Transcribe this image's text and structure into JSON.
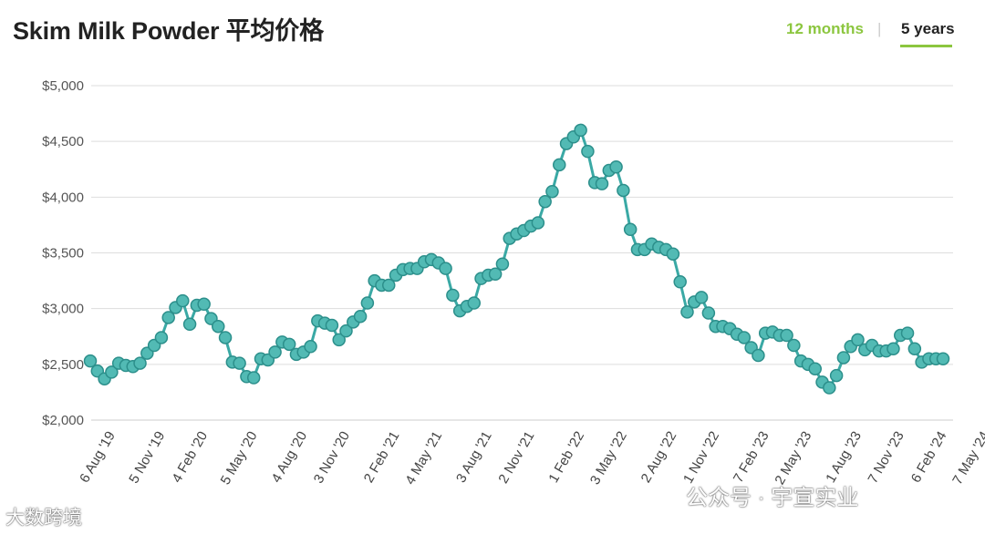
{
  "header": {
    "title": "Skim Milk Powder 平均价格",
    "range_options": [
      "12 months",
      "5 years"
    ],
    "separator": "|",
    "selected": "5 years"
  },
  "colors": {
    "line": "#3aa9a5",
    "marker_fill": "#52bab4",
    "marker_stroke": "#2c8f8b",
    "accent": "#8cc63f",
    "grid": "#dddddd"
  },
  "watermarks": {
    "left": "大数跨境",
    "right": "公众号 · 宇宣实业"
  },
  "chart_data": {
    "type": "line",
    "title": "Skim Milk Powder 平均价格",
    "xlabel": "",
    "ylabel": "",
    "ylim": [
      2000,
      5000
    ],
    "y_ticks": [
      {
        "value": 5000,
        "label": "$5,000"
      },
      {
        "value": 4500,
        "label": "$4,500"
      },
      {
        "value": 4000,
        "label": "$4,000"
      },
      {
        "value": 3500,
        "label": "$3,500"
      },
      {
        "value": 3000,
        "label": "$3,000"
      },
      {
        "value": 2500,
        "label": "$2,500"
      },
      {
        "value": 2000,
        "label": "$2,000"
      }
    ],
    "x_ticks": [
      {
        "index": 3,
        "label": "6 Aug '19"
      },
      {
        "index": 10,
        "label": "5 Nov '19"
      },
      {
        "index": 16,
        "label": "4 Feb '20"
      },
      {
        "index": 23,
        "label": "5 May '20"
      },
      {
        "index": 30,
        "label": "4 Aug '20"
      },
      {
        "index": 36,
        "label": "3 Nov '20"
      },
      {
        "index": 43,
        "label": "2 Feb '21"
      },
      {
        "index": 49,
        "label": "4 May '21"
      },
      {
        "index": 56,
        "label": "3 Aug '21"
      },
      {
        "index": 62,
        "label": "2 Nov '21"
      },
      {
        "index": 69,
        "label": "1 Feb '22"
      },
      {
        "index": 75,
        "label": "3 May '22"
      },
      {
        "index": 82,
        "label": "2 Aug '22"
      },
      {
        "index": 88,
        "label": "1 Nov '22"
      },
      {
        "index": 95,
        "label": "7 Feb '23"
      },
      {
        "index": 101,
        "label": "2 May '23"
      },
      {
        "index": 108,
        "label": "1 Aug '23"
      },
      {
        "index": 114,
        "label": "7 Nov '23"
      },
      {
        "index": 120,
        "label": "6 Feb '24"
      },
      {
        "index": 126,
        "label": "7 May '24"
      }
    ],
    "grid": true,
    "legend": "none",
    "series": [
      {
        "values": [
          2530,
          2440,
          2370,
          2430,
          2510,
          2490,
          2480,
          2510,
          2600,
          2670,
          2740,
          2920,
          3010,
          3070,
          2860,
          3030,
          3040,
          2910,
          2840,
          2740,
          2520,
          2510,
          2390,
          2380,
          2550,
          2540,
          2610,
          2700,
          2680,
          2590,
          2610,
          2660,
          2890,
          2870,
          2850,
          2720,
          2800,
          2880,
          2930,
          3050,
          3250,
          3210,
          3210,
          3300,
          3350,
          3360,
          3360,
          3420,
          3440,
          3410,
          3360,
          3120,
          2980,
          3020,
          3050,
          3270,
          3300,
          3310,
          3400,
          3630,
          3670,
          3700,
          3740,
          3770,
          3960,
          4050,
          4290,
          4480,
          4540,
          4600,
          4410,
          4130,
          4120,
          4240,
          4270,
          4060,
          3710,
          3530,
          3530,
          3580,
          3550,
          3530,
          3490,
          3240,
          2970,
          3060,
          3100,
          2960,
          2840,
          2840,
          2820,
          2770,
          2740,
          2650,
          2580,
          2780,
          2790,
          2760,
          2760,
          2670,
          2530,
          2500,
          2460,
          2340,
          2290,
          2400,
          2560,
          2660,
          2720,
          2630,
          2670,
          2620,
          2620,
          2640,
          2760,
          2780,
          2640,
          2520,
          2550,
          2550,
          2550
        ]
      }
    ]
  }
}
